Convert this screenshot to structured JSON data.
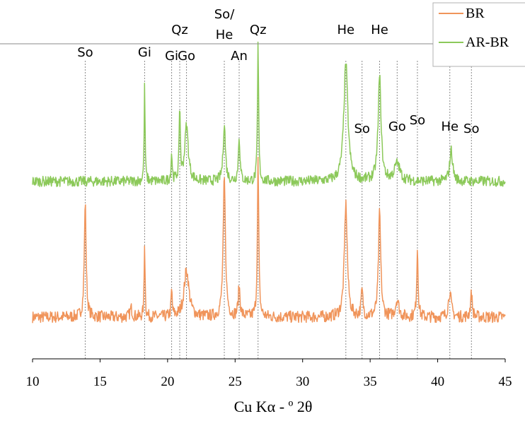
{
  "chart_data": {
    "type": "line",
    "title": "",
    "xlabel": "Cu Kα - º 2θ",
    "ylabel": "",
    "xlim": [
      10,
      45
    ],
    "x_ticks": [
      10,
      15,
      20,
      25,
      30,
      35,
      40,
      45
    ],
    "grid": false,
    "legend_position": "top-right",
    "series": [
      {
        "name": "BR",
        "color": "#F0945A",
        "baseline": 0.12,
        "noise": 0.028,
        "peaks": [
          {
            "x": 13.9,
            "height": 0.54,
            "width": 0.08
          },
          {
            "x": 17.3,
            "height": 0.04,
            "width": 0.1
          },
          {
            "x": 18.3,
            "height": 0.36,
            "width": 0.04
          },
          {
            "x": 20.3,
            "height": 0.12,
            "width": 0.05
          },
          {
            "x": 21.4,
            "height": 0.22,
            "width": 0.22
          },
          {
            "x": 24.2,
            "height": 0.65,
            "width": 0.1
          },
          {
            "x": 25.3,
            "height": 0.14,
            "width": 0.08
          },
          {
            "x": 26.7,
            "height": 0.74,
            "width": 0.06
          },
          {
            "x": 33.2,
            "height": 0.53,
            "width": 0.13
          },
          {
            "x": 34.4,
            "height": 0.12,
            "width": 0.08
          },
          {
            "x": 35.7,
            "height": 0.49,
            "width": 0.1
          },
          {
            "x": 37.0,
            "height": 0.08,
            "width": 0.15
          },
          {
            "x": 38.5,
            "height": 0.33,
            "width": 0.06
          },
          {
            "x": 40.9,
            "height": 0.12,
            "width": 0.12
          },
          {
            "x": 42.5,
            "height": 0.11,
            "width": 0.08
          }
        ]
      },
      {
        "name": "AR-BR",
        "color": "#8CC95A",
        "baseline": 0.115,
        "noise": 0.03,
        "peaks": [
          {
            "x": 18.3,
            "height": 0.55,
            "width": 0.04
          },
          {
            "x": 20.3,
            "height": 0.16,
            "width": 0.05
          },
          {
            "x": 20.9,
            "height": 0.43,
            "width": 0.05
          },
          {
            "x": 21.4,
            "height": 0.32,
            "width": 0.16
          },
          {
            "x": 24.2,
            "height": 0.33,
            "width": 0.1
          },
          {
            "x": 25.3,
            "height": 0.26,
            "width": 0.07
          },
          {
            "x": 26.7,
            "height": 0.8,
            "width": 0.05
          },
          {
            "x": 33.2,
            "height": 0.68,
            "width": 0.18
          },
          {
            "x": 35.7,
            "height": 0.6,
            "width": 0.13
          },
          {
            "x": 37.0,
            "height": 0.1,
            "width": 0.25
          },
          {
            "x": 41.0,
            "height": 0.18,
            "width": 0.13
          }
        ]
      }
    ],
    "annotations": [
      {
        "text": "So",
        "x": 13.9,
        "row": "low"
      },
      {
        "text": "Gi",
        "x": 18.3,
        "row": "low"
      },
      {
        "text": "Gi",
        "x": 20.3,
        "row": "mid"
      },
      {
        "text": "Qz",
        "x": 20.9,
        "row": "high"
      },
      {
        "text": "Go",
        "x": 21.4,
        "row": "mid"
      },
      {
        "text": "So/",
        "x": 24.2,
        "row": "top"
      },
      {
        "text": "He",
        "x": 24.2,
        "row": "high2"
      },
      {
        "text": "An",
        "x": 25.3,
        "row": "mid"
      },
      {
        "text": "Qz",
        "x": 26.7,
        "row": "high"
      },
      {
        "text": "He",
        "x": 33.2,
        "row": "high"
      },
      {
        "text": "He",
        "x": 35.7,
        "row": "high"
      },
      {
        "text": "So",
        "x": 34.4,
        "row": "lower"
      },
      {
        "text": "Go",
        "x": 37.0,
        "row": "lower2"
      },
      {
        "text": "So",
        "x": 38.5,
        "row": "lower3"
      },
      {
        "text": "He",
        "x": 40.9,
        "row": "lower2"
      },
      {
        "text": "So",
        "x": 42.5,
        "row": "lower"
      }
    ]
  }
}
